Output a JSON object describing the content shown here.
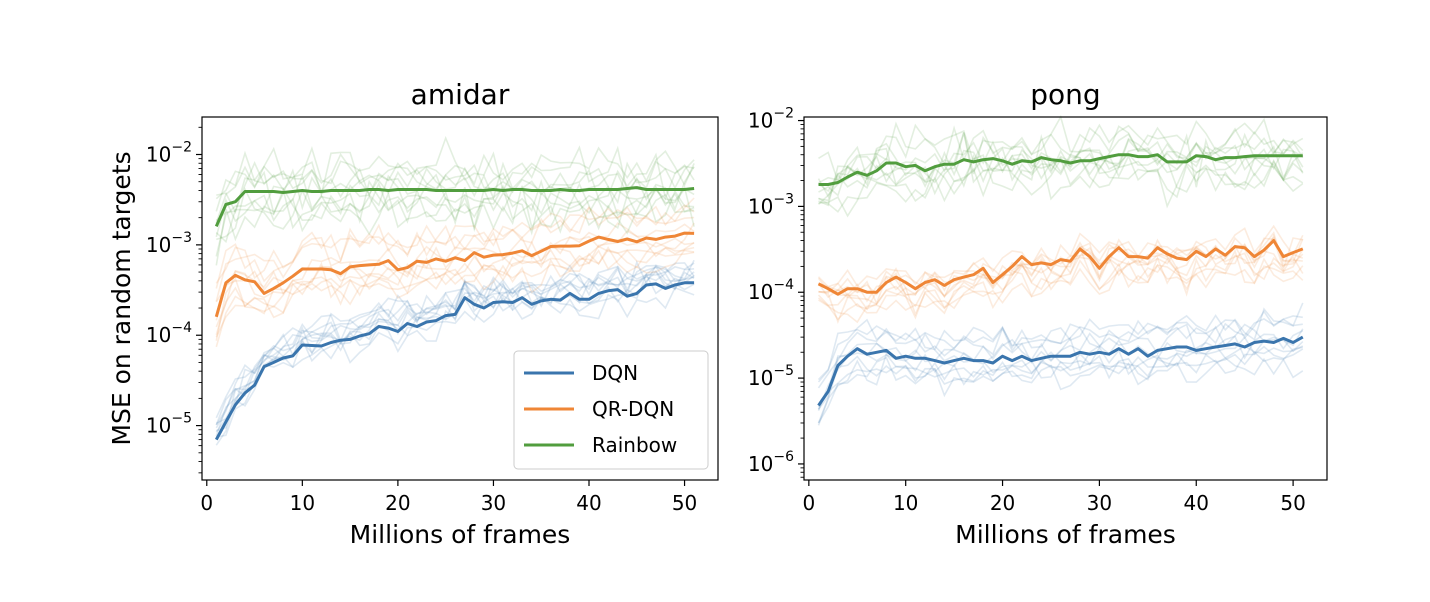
{
  "chart_data": [
    {
      "type": "line",
      "title": "amidar",
      "xlabel": "Millions of frames",
      "ylabel": "MSE on random targets",
      "yscale": "log",
      "xlim": [
        -0.5,
        53.5
      ],
      "ylim": [
        2.5e-06,
        0.026
      ],
      "xticks": [
        0,
        10,
        20,
        30,
        40,
        50
      ],
      "xtick_labels": [
        "0",
        "10",
        "20",
        "30",
        "40",
        "50"
      ],
      "ytick_labels": [
        {
          "base": "10",
          "exp": "−5",
          "value": 1e-05
        },
        {
          "base": "10",
          "exp": "−4",
          "value": 0.0001
        },
        {
          "base": "10",
          "exp": "−3",
          "value": 0.001
        },
        {
          "base": "10",
          "exp": "−2",
          "value": 0.01
        }
      ],
      "grid": false,
      "legend": {
        "placement": "lower-right",
        "entries": [
          "DQN",
          "QR-DQN",
          "Rainbow"
        ]
      },
      "series": [
        {
          "name": "DQN",
          "color": "#3a75ad",
          "x": [
            1,
            2,
            3,
            4,
            5,
            6,
            7,
            8,
            9,
            10,
            11,
            12,
            13,
            14,
            15,
            16,
            17,
            18,
            19,
            20,
            21,
            22,
            23,
            24,
            25,
            26,
            27,
            28,
            29,
            30,
            31,
            32,
            33,
            34,
            35,
            36,
            37,
            38,
            39,
            40,
            41,
            42,
            43,
            44,
            45,
            46,
            47,
            48,
            49,
            50,
            51
          ],
          "values": [
            7e-06,
            1.1e-05,
            1.7e-05,
            2.3e-05,
            2.8e-05,
            4.5e-05,
            5e-05,
            5.6e-05,
            5.9e-05,
            7.8e-05,
            7.7e-05,
            7.6e-05,
            8.3e-05,
            8.8e-05,
            9e-05,
            9.8e-05,
            0.000104,
            0.000125,
            0.00012,
            0.00011,
            0.000135,
            0.000125,
            0.00014,
            0.000145,
            0.000165,
            0.00017,
            0.00026,
            0.00022,
            0.0002,
            0.00023,
            0.000235,
            0.00023,
            0.00026,
            0.00022,
            0.00024,
            0.00025,
            0.000245,
            0.00029,
            0.00025,
            0.00025,
            0.00029,
            0.00031,
            0.00032,
            0.00027,
            0.00029,
            0.00036,
            0.00037,
            0.00033,
            0.00036,
            0.00038,
            0.00038
          ]
        },
        {
          "name": "QR-DQN",
          "color": "#ef8636",
          "x": [
            1,
            2,
            3,
            4,
            5,
            6,
            7,
            8,
            9,
            10,
            11,
            12,
            13,
            14,
            15,
            16,
            17,
            18,
            19,
            20,
            21,
            22,
            23,
            24,
            25,
            26,
            27,
            28,
            29,
            30,
            31,
            32,
            33,
            34,
            35,
            36,
            37,
            38,
            39,
            40,
            41,
            42,
            43,
            44,
            45,
            46,
            47,
            48,
            49,
            50,
            51
          ],
          "values": [
            0.00016,
            0.00038,
            0.00046,
            0.00041,
            0.00039,
            0.00029,
            0.00033,
            0.00038,
            0.00045,
            0.00054,
            0.00054,
            0.00054,
            0.00053,
            0.00048,
            0.00057,
            0.00059,
            0.0006,
            0.00061,
            0.00067,
            0.00053,
            0.00056,
            0.00066,
            0.00064,
            0.0007,
            0.00066,
            0.00072,
            0.00067,
            0.00082,
            0.00073,
            0.00077,
            0.00078,
            0.00081,
            0.00086,
            0.00076,
            0.00085,
            0.00096,
            0.00097,
            0.00097,
            0.00098,
            0.0011,
            0.00122,
            0.00115,
            0.00109,
            0.00116,
            0.00108,
            0.00119,
            0.00115,
            0.00122,
            0.00125,
            0.00135,
            0.00134
          ]
        },
        {
          "name": "Rainbow",
          "color": "#519d3e",
          "x": [
            1,
            2,
            3,
            4,
            5,
            6,
            7,
            8,
            9,
            10,
            11,
            12,
            13,
            14,
            15,
            16,
            17,
            18,
            19,
            20,
            21,
            22,
            23,
            24,
            25,
            26,
            27,
            28,
            29,
            30,
            31,
            32,
            33,
            34,
            35,
            36,
            37,
            38,
            39,
            40,
            41,
            42,
            43,
            44,
            45,
            46,
            47,
            48,
            49,
            50,
            51
          ],
          "values": [
            0.0016,
            0.0028,
            0.003,
            0.0039,
            0.0039,
            0.0039,
            0.0039,
            0.0038,
            0.0039,
            0.004,
            0.0039,
            0.0039,
            0.004,
            0.004,
            0.004,
            0.004,
            0.0041,
            0.0041,
            0.004,
            0.0041,
            0.0041,
            0.0041,
            0.0041,
            0.004,
            0.004,
            0.004,
            0.004,
            0.004,
            0.004,
            0.0041,
            0.004,
            0.0041,
            0.0041,
            0.004,
            0.004,
            0.004,
            0.0041,
            0.004,
            0.004,
            0.0041,
            0.0041,
            0.0041,
            0.0041,
            0.0042,
            0.0043,
            0.0041,
            0.0041,
            0.0041,
            0.0041,
            0.0041,
            0.0042
          ]
        }
      ]
    },
    {
      "type": "line",
      "title": "pong",
      "xlabel": "Millions of frames",
      "ylabel": "",
      "yscale": "log",
      "xlim": [
        -0.5,
        53.5
      ],
      "ylim": [
        6.5e-07,
        0.011
      ],
      "xticks": [
        0,
        10,
        20,
        30,
        40,
        50
      ],
      "xtick_labels": [
        "0",
        "10",
        "20",
        "30",
        "40",
        "50"
      ],
      "ytick_labels": [
        {
          "base": "10",
          "exp": "−6",
          "value": 1e-06
        },
        {
          "base": "10",
          "exp": "−5",
          "value": 1e-05
        },
        {
          "base": "10",
          "exp": "−4",
          "value": 0.0001
        },
        {
          "base": "10",
          "exp": "−3",
          "value": 0.001
        },
        {
          "base": "10",
          "exp": "−2",
          "value": 0.01
        }
      ],
      "grid": false,
      "series": [
        {
          "name": "DQN",
          "color": "#3a75ad",
          "x": [
            1,
            2,
            3,
            4,
            5,
            6,
            7,
            8,
            9,
            10,
            11,
            12,
            13,
            14,
            15,
            16,
            17,
            18,
            19,
            20,
            21,
            22,
            23,
            24,
            25,
            26,
            27,
            28,
            29,
            30,
            31,
            32,
            33,
            34,
            35,
            36,
            37,
            38,
            39,
            40,
            41,
            42,
            43,
            44,
            45,
            46,
            47,
            48,
            49,
            50,
            51
          ],
          "values": [
            4.8e-06,
            7e-06,
            1.4e-05,
            1.8e-05,
            2.2e-05,
            1.9e-05,
            2e-05,
            2.1e-05,
            1.7e-05,
            1.8e-05,
            1.7e-05,
            1.7e-05,
            1.6e-05,
            1.5e-05,
            1.6e-05,
            1.7e-05,
            1.6e-05,
            1.6e-05,
            1.5e-05,
            1.8e-05,
            1.6e-05,
            1.8e-05,
            1.6e-05,
            1.7e-05,
            1.8e-05,
            1.8e-05,
            1.8e-05,
            2e-05,
            1.9e-05,
            2e-05,
            1.9e-05,
            2.2e-05,
            1.9e-05,
            2.2e-05,
            1.8e-05,
            2.1e-05,
            2.2e-05,
            2.3e-05,
            2.3e-05,
            2.1e-05,
            2.2e-05,
            2.3e-05,
            2.4e-05,
            2.5e-05,
            2.3e-05,
            2.6e-05,
            2.7e-05,
            2.6e-05,
            2.9e-05,
            2.6e-05,
            3e-05
          ]
        },
        {
          "name": "QR-DQN",
          "color": "#ef8636",
          "x": [
            1,
            2,
            3,
            4,
            5,
            6,
            7,
            8,
            9,
            10,
            11,
            12,
            13,
            14,
            15,
            16,
            17,
            18,
            19,
            20,
            21,
            22,
            23,
            24,
            25,
            26,
            27,
            28,
            29,
            30,
            31,
            32,
            33,
            34,
            35,
            36,
            37,
            38,
            39,
            40,
            41,
            42,
            43,
            44,
            45,
            46,
            47,
            48,
            49,
            50,
            51
          ],
          "values": [
            0.000125,
            0.00011,
            9.5e-05,
            0.00011,
            0.00011,
            0.0001,
            0.0001,
            0.00013,
            0.00015,
            0.00013,
            0.00011,
            0.00013,
            0.00014,
            0.00012,
            0.00014,
            0.00015,
            0.00016,
            0.00019,
            0.00013,
            0.00016,
            0.0002,
            0.00026,
            0.00021,
            0.00022,
            0.00021,
            0.00024,
            0.00023,
            0.00032,
            0.00026,
            0.00019,
            0.00026,
            0.00033,
            0.00026,
            0.00026,
            0.00025,
            0.00033,
            0.00028,
            0.00025,
            0.00024,
            0.0003,
            0.00026,
            0.00032,
            0.00027,
            0.00034,
            0.00033,
            0.00026,
            0.00031,
            0.0004,
            0.00026,
            0.00029,
            0.00032
          ]
        },
        {
          "name": "Rainbow",
          "color": "#519d3e",
          "x": [
            1,
            2,
            3,
            4,
            5,
            6,
            7,
            8,
            9,
            10,
            11,
            12,
            13,
            14,
            15,
            16,
            17,
            18,
            19,
            20,
            21,
            22,
            23,
            24,
            25,
            26,
            27,
            28,
            29,
            30,
            31,
            32,
            33,
            34,
            35,
            36,
            37,
            38,
            39,
            40,
            41,
            42,
            43,
            44,
            45,
            46,
            47,
            48,
            49,
            50,
            51
          ],
          "values": [
            0.0018,
            0.0018,
            0.0019,
            0.0022,
            0.0025,
            0.0023,
            0.0026,
            0.0032,
            0.0032,
            0.0029,
            0.003,
            0.0026,
            0.0029,
            0.0031,
            0.0031,
            0.0035,
            0.0033,
            0.0035,
            0.0036,
            0.0034,
            0.0031,
            0.0034,
            0.0033,
            0.0037,
            0.0035,
            0.0034,
            0.0032,
            0.0034,
            0.0034,
            0.0036,
            0.0038,
            0.004,
            0.004,
            0.0038,
            0.0038,
            0.004,
            0.0033,
            0.0033,
            0.0033,
            0.0039,
            0.0038,
            0.0035,
            0.0037,
            0.0037,
            0.0038,
            0.0039,
            0.0039,
            0.0039,
            0.0039,
            0.0039,
            0.0039
          ]
        }
      ]
    }
  ]
}
